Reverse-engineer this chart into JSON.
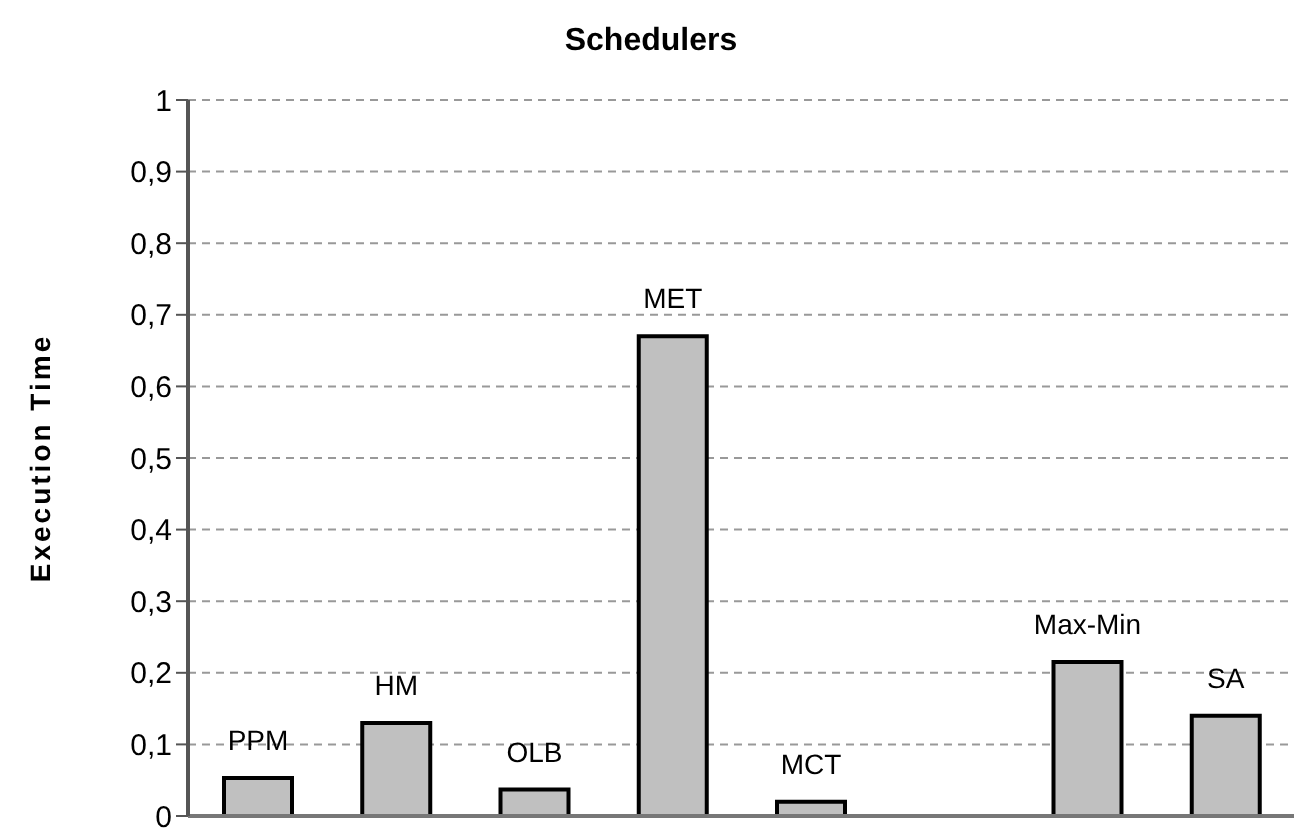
{
  "chart_data": {
    "type": "bar",
    "title": "Schedulers",
    "ylabel": "Execution Time",
    "categories": [
      "PPM",
      "HM",
      "OLB",
      "MET",
      "MCT",
      null,
      "Max-Min",
      "SA"
    ],
    "values": [
      0.053,
      0.13,
      0.037,
      0.67,
      0.02,
      null,
      0.215,
      0.14
    ],
    "color": "#c0c0c0",
    "ylim": [
      0,
      1
    ],
    "yticks": [
      0,
      {
        "value": 0.1,
        "label": "0,1"
      },
      {
        "value": 0.2,
        "label": "0,2"
      },
      {
        "value": 0.3,
        "label": "0,3"
      },
      {
        "value": 0.4,
        "label": "0,4"
      },
      {
        "value": 0.5,
        "label": "0,5"
      },
      {
        "value": 0.6,
        "label": "0,6"
      },
      {
        "value": 0.7,
        "label": "0,7"
      },
      {
        "value": 0.8,
        "label": "0,8"
      },
      {
        "value": 0.9,
        "label": "0,9"
      },
      1
    ],
    "grid": "y"
  }
}
